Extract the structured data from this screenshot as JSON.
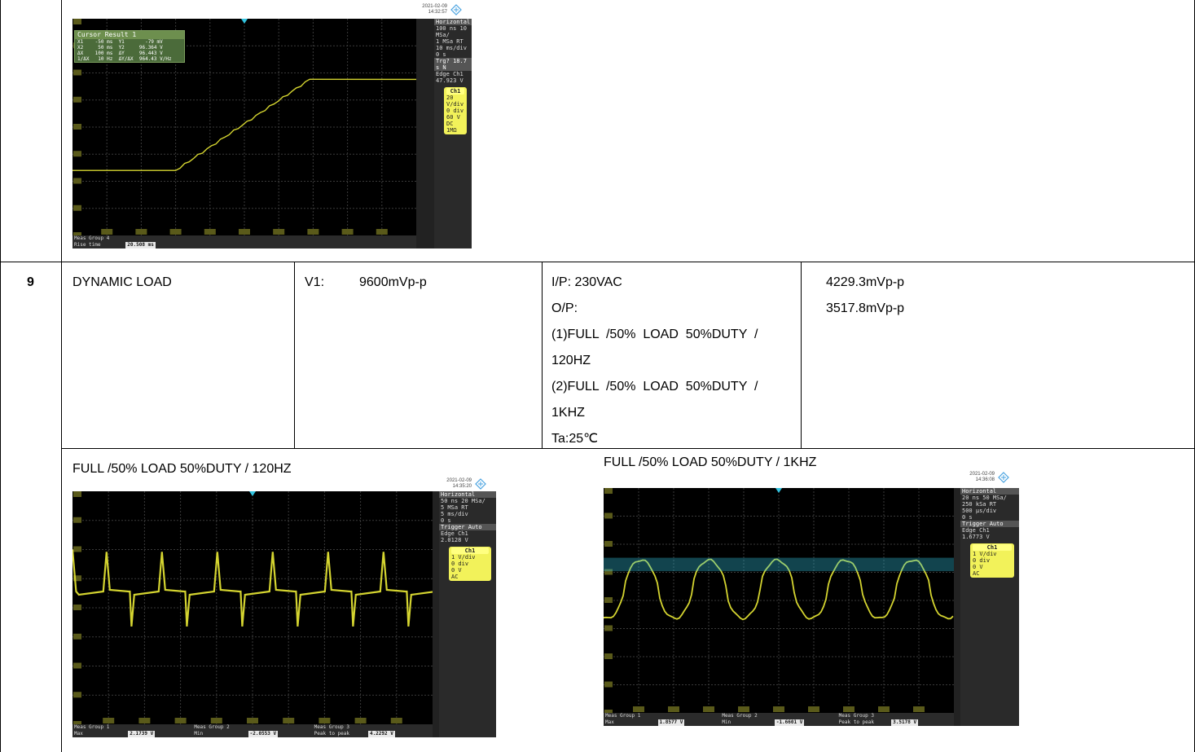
{
  "row9": {
    "number": "9",
    "item": "DYNAMIC LOAD",
    "spec_label": "V1:",
    "spec_value": "9600mVp-p",
    "conditions": [
      "I/P: 230VAC",
      "O/P:",
      "(1)FULL  /50%  LOAD  50%DUTY  /",
      "120HZ",
      "(2)FULL  /50%  LOAD  50%DUTY  /",
      "1KHZ",
      "Ta:25℃"
    ],
    "results": [
      "4229.3mVp-p",
      "3517.8mVp-p"
    ]
  },
  "captions": {
    "left": "FULL /50% LOAD 50%DUTY / 120HZ",
    "right": "FULL /50% LOAD 50%DUTY / 1KHZ"
  },
  "scopes": [
    {
      "date": "2021-02-09",
      "time": "14:32:57",
      "horizontal": [
        "Horizontal",
        "100 ns   10 MSa/",
        "1 MSa       RT",
        "10 ms/div",
        "0 s"
      ],
      "trigger": [
        "Trg? 18.7 s       N",
        "Edge  Ch1",
        "47.923 V"
      ],
      "ch1": [
        "Ch1",
        "20 V/div",
        "0 div",
        "60 V",
        "DC 1MΩ"
      ],
      "cursor": {
        "title": "Cursor Result 1",
        "rows": [
          "X1    -50 ms  Y1       -79 mV",
          "X2     50 ms  Y2     96.364 V",
          "ΔX    100 ms  ΔY     96.443 V",
          "1/ΔX   10 Hz  ΔY/ΔX  964.43 V/Hz"
        ]
      },
      "meas": [
        {
          "label": "Meas Group 4",
          "name": "Rise time",
          "value": "20.508 ms"
        }
      ]
    },
    {
      "date": "2021-02-09",
      "time": "14:35:20",
      "horizontal": [
        "Horizontal",
        "50 ns   20 MSa/",
        "5 MSa       RT",
        "5 ms/div",
        "0 s"
      ],
      "trigger": [
        "Trigger        Auto",
        "Edge  Ch1",
        "2.0128 V"
      ],
      "ch1": [
        "Ch1",
        "1 V/div",
        "0 div",
        "0 V",
        "AC"
      ],
      "meas": [
        {
          "label": "Meas Group 1",
          "name": "Max",
          "value": "2.1739 V"
        },
        {
          "label": "Meas Group 2",
          "name": "Min",
          "value": "-2.0553 V"
        },
        {
          "label": "Meas Group 3",
          "name": "Peak to peak",
          "value": "4.2292 V"
        }
      ]
    },
    {
      "date": "2021-02-09",
      "time": "14:36:08",
      "horizontal": [
        "Horizontal",
        "20 ns   50 MSa/",
        "250 kSa      RT",
        "500 µs/div",
        "0 s"
      ],
      "trigger": [
        "Trigger        Auto",
        "Edge  Ch1",
        "1.6773 V"
      ],
      "ch1": [
        "Ch1",
        "1 V/div",
        "0 div",
        "0 V",
        "AC"
      ],
      "meas": [
        {
          "label": "Meas Group 1",
          "name": "Max",
          "value": "1.8577 V"
        },
        {
          "label": "Meas Group 2",
          "name": "Min",
          "value": "-1.6601 V"
        },
        {
          "label": "Meas Group 3",
          "name": "Peak to peak",
          "value": "3.5178 V"
        }
      ]
    }
  ],
  "colors": {
    "trace": "#d4d430",
    "grid": "#3a3a3a",
    "marker": "#33c4e0"
  }
}
